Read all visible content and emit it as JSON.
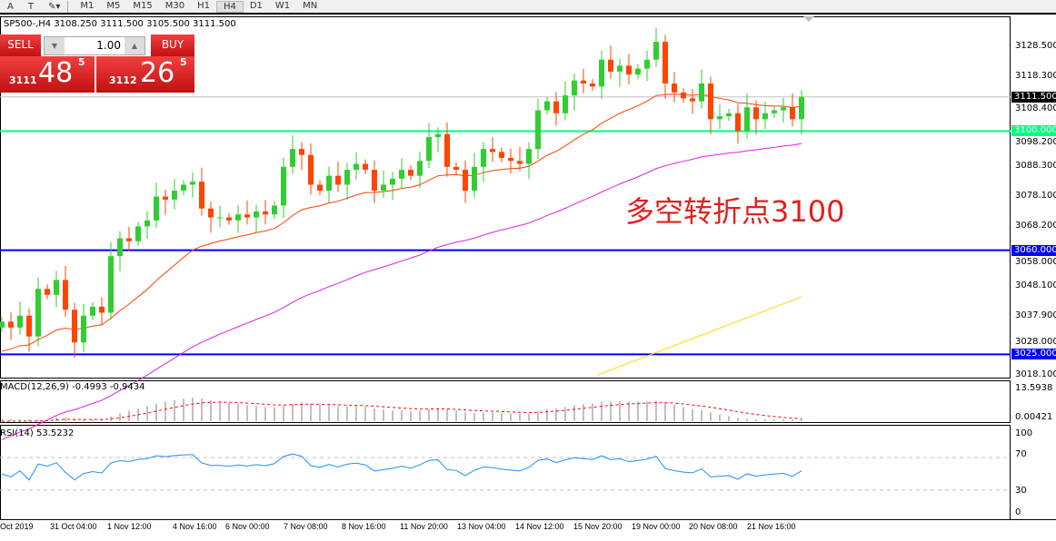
{
  "toolbar": {
    "tools": [
      "A",
      "T"
    ],
    "timeframes": [
      "M1",
      "M5",
      "M15",
      "M30",
      "H1",
      "H4",
      "D1",
      "W1",
      "MN"
    ],
    "active": "H4"
  },
  "info": "SP500-,H4  3108.250 3111.500 3105.500 3111.500",
  "trade": {
    "sell_label": "SELL",
    "buy_label": "BUY",
    "volume": "1.00",
    "sell_prefix": "3111",
    "sell_big": "48",
    "sell_sup": "5",
    "buy_prefix": "3112",
    "buy_big": "26",
    "buy_sup": "5"
  },
  "price_axis": [
    "3128.500",
    "3118.300",
    "3108.400",
    "3098.200",
    "3088.300",
    "3078.100",
    "3068.200",
    "3058.000",
    "3048.100",
    "3037.900",
    "3028.000",
    "3018.100"
  ],
  "levels": [
    {
      "label": "3111.500",
      "price": 3111.5,
      "color": "#c0c0c0",
      "tag": "#000000"
    },
    {
      "label": "3100.000",
      "price": 3100,
      "color": "#00ff7f",
      "tag": "#00ff7f"
    },
    {
      "label": "3060.000",
      "price": 3060,
      "color": "#0000ff",
      "tag": "#0000ff"
    },
    {
      "label": "3025.000",
      "price": 3025,
      "color": "#0000ff",
      "tag": "#0000ff"
    }
  ],
  "annotation": "多空转折点3100",
  "macd": {
    "label": "MACD(12,26,9) -0.4993 -0.9434",
    "axis_top": "13.5938",
    "axis_bottom": "0.00421"
  },
  "rsi": {
    "label": "RSI(14) 53.5232",
    "axis": [
      "100",
      "70",
      "30",
      "0"
    ]
  },
  "time_axis": [
    "Oct 2019",
    "31 Oct 04:00",
    "1 Nov 12:00",
    "4 Nov 16:00",
    "6 Nov 00:00",
    "7 Nov 08:00",
    "8 Nov 16:00",
    "11 Nov 20:00",
    "13 Nov 04:00",
    "14 Nov 12:00",
    "15 Nov 20:00",
    "19 Nov 00:00",
    "20 Nov 08:00",
    "21 Nov 16:00"
  ],
  "chart_data": {
    "type": "candlestick",
    "symbol": "SP500-",
    "timeframe": "H4",
    "ylim": [
      3018.1,
      3128.5
    ],
    "closes": [
      3036,
      3034,
      3038,
      3031,
      3047,
      3045,
      3050,
      3040,
      3029,
      3038,
      3041,
      3039,
      3058,
      3064,
      3063,
      3068,
      3070,
      3078,
      3077,
      3080,
      3082,
      3083,
      3074,
      3071,
      3071,
      3070,
      3072,
      3071,
      3073,
      3072,
      3075,
      3088,
      3094,
      3092,
      3082,
      3080,
      3085,
      3082,
      3087,
      3089,
      3087,
      3080,
      3082,
      3084,
      3087,
      3085,
      3090,
      3098,
      3099,
      3088,
      3087,
      3080,
      3088,
      3094,
      3093,
      3091,
      3090,
      3089,
      3094,
      3107,
      3110,
      3106,
      3112,
      3117,
      3116,
      3115,
      3124,
      3120,
      3122,
      3119,
      3121,
      3124,
      3130,
      3116,
      3113,
      3111,
      3110,
      3116,
      3104,
      3105,
      3106,
      3100,
      3108,
      3104,
      3106,
      3107,
      3108,
      3104,
      3111.5
    ],
    "ma_colors": [
      "#ff4000",
      "#e020e0",
      "#ffd700"
    ],
    "ma_periods": [
      20,
      60
    ],
    "long_ma_range": [
      3018,
      3044.3
    ],
    "up_color": "#32cd32",
    "down_color": "#ff4500"
  }
}
